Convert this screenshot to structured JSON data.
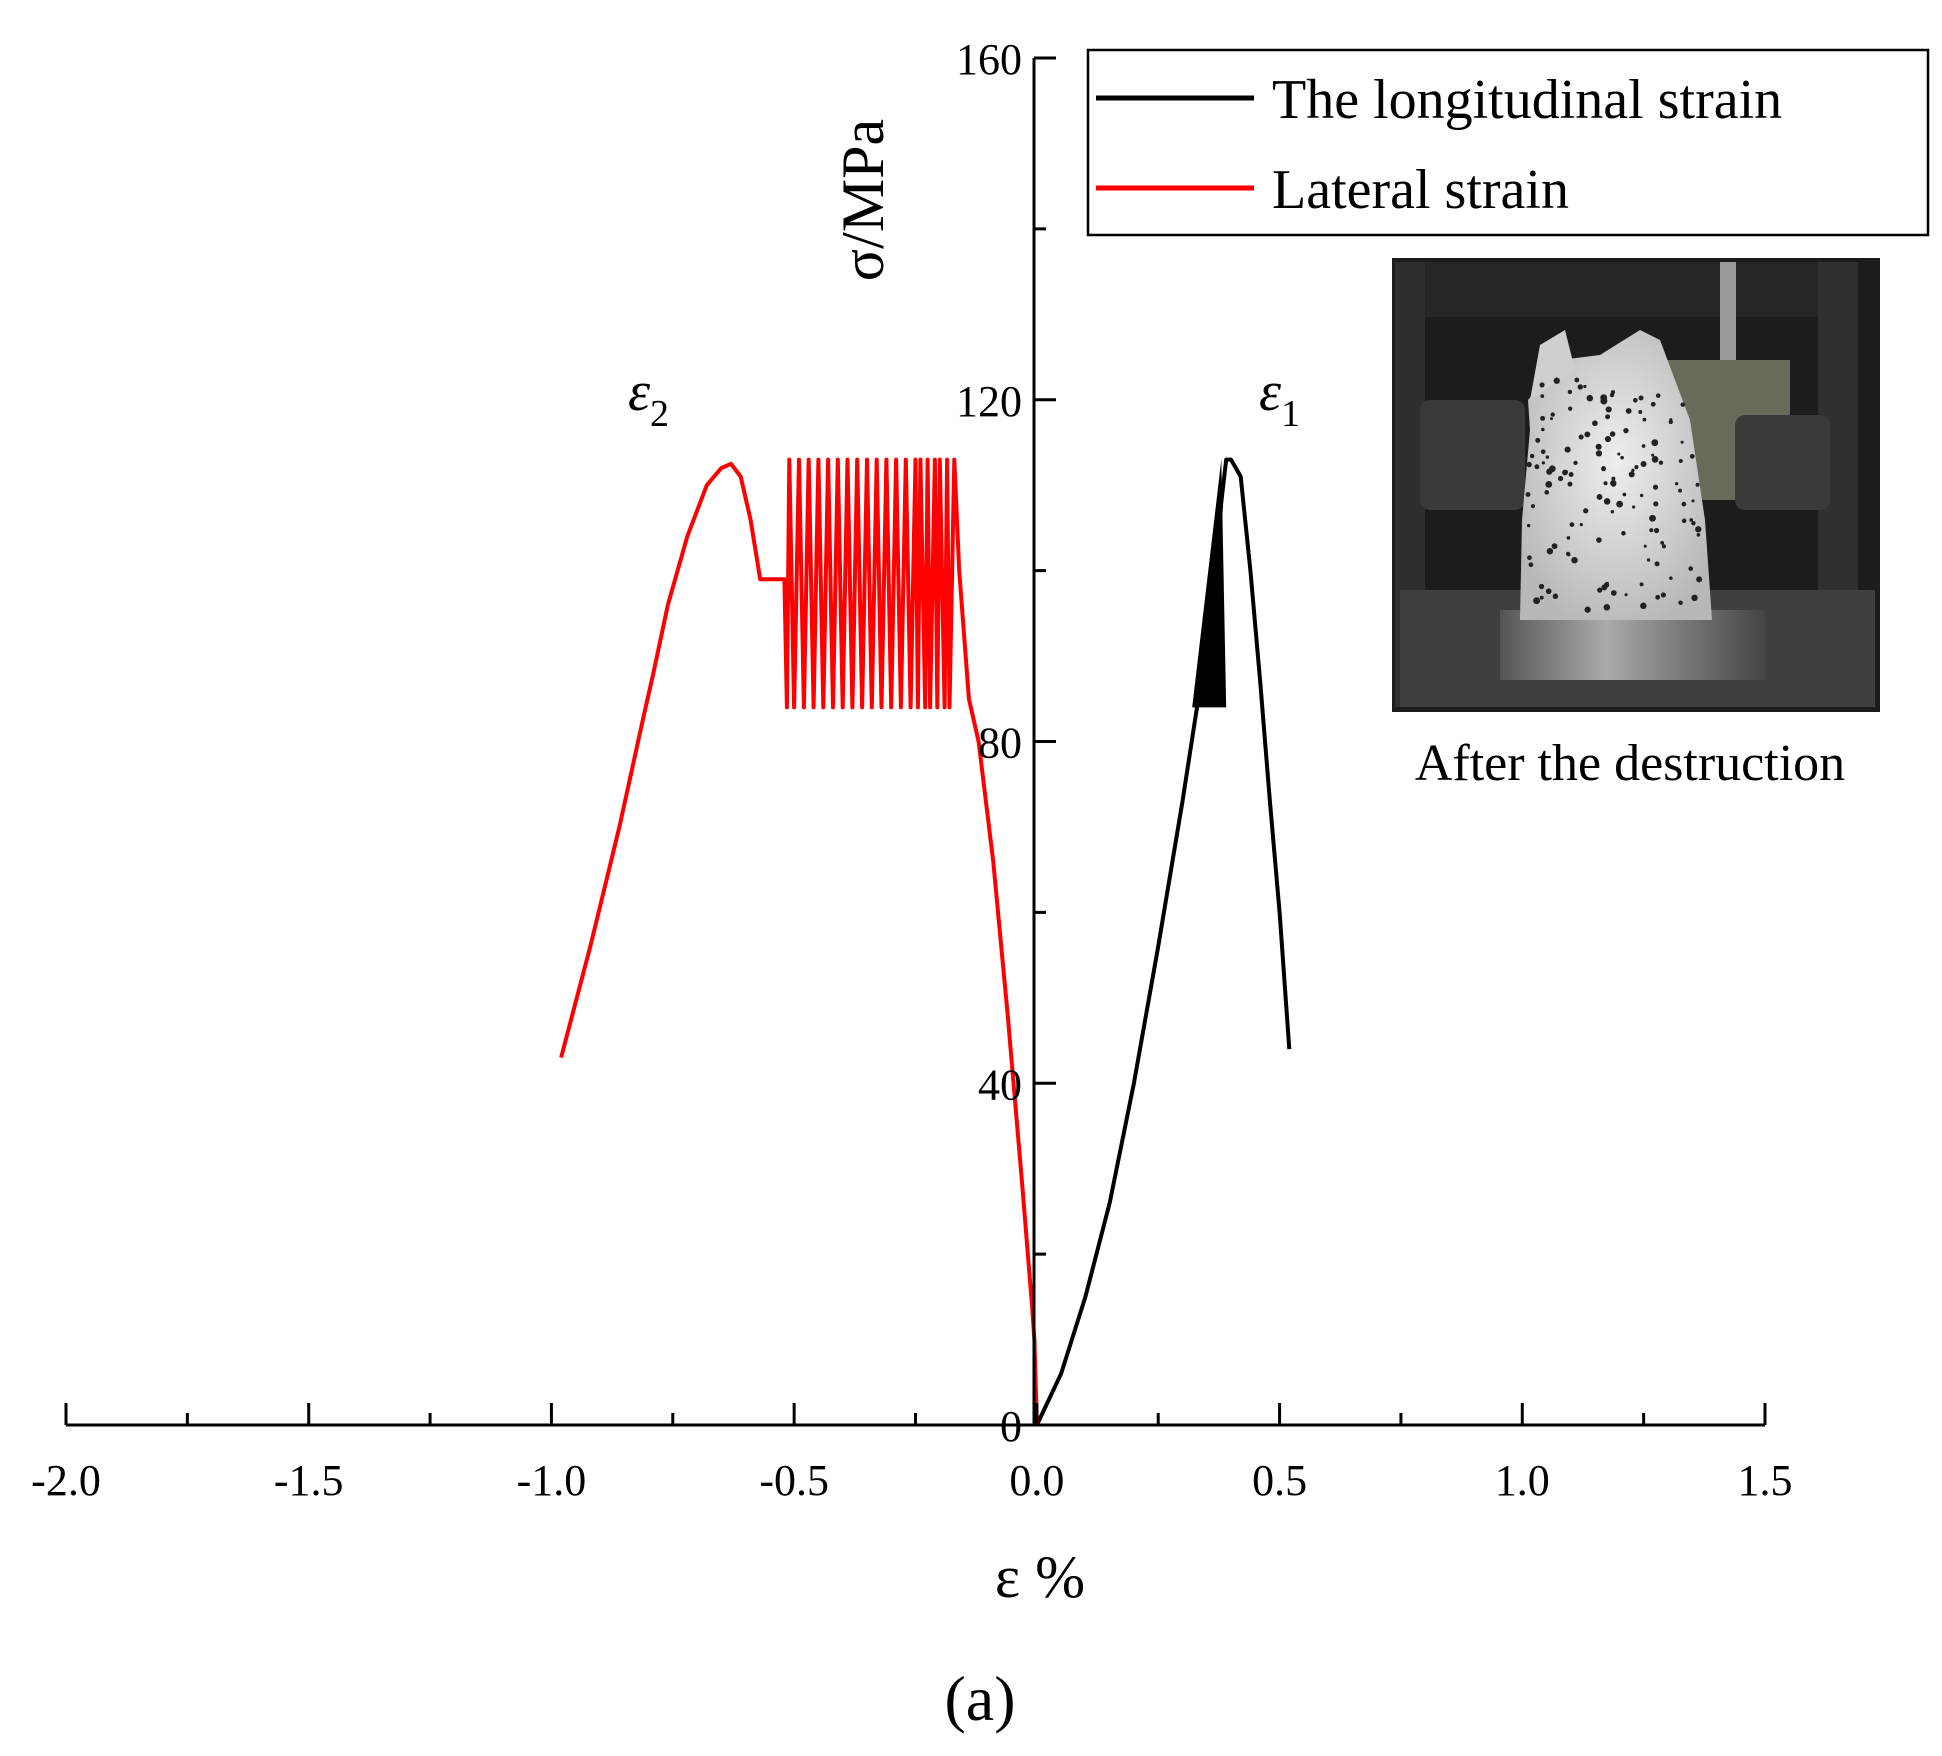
{
  "chart_data": {
    "type": "line",
    "title": "",
    "xlabel": "ε %",
    "ylabel": "σ/MPa",
    "xlim": [
      -2.0,
      1.5
    ],
    "ylim": [
      0,
      160
    ],
    "x_ticks": [
      -2.0,
      -1.5,
      -1.0,
      -0.5,
      0.0,
      0.5,
      1.0,
      1.5
    ],
    "x_tick_labels": [
      "-2.0",
      "-1.5",
      "-1.0",
      "-0.5",
      "0.0",
      "0.5",
      "1.0",
      "1.5"
    ],
    "y_ticks": [
      0,
      40,
      80,
      120,
      160
    ],
    "y_tick_labels": [
      "0",
      "40",
      "80",
      "120",
      "160"
    ],
    "grid": false,
    "legend_position": "top-right",
    "series": [
      {
        "name": "The longitudinal strain",
        "color": "#000000",
        "x": [
          0.0,
          0.05,
          0.1,
          0.15,
          0.2,
          0.25,
          0.3,
          0.33,
          0.35,
          0.37,
          0.38,
          0.39,
          0.4,
          0.41,
          0.42,
          0.44,
          0.46,
          0.48,
          0.5,
          0.52
        ],
        "y": [
          0,
          6,
          15,
          26,
          40,
          56,
          73,
          84,
          93,
          100,
          108,
          113,
          113,
          112,
          111,
          100,
          87,
          73,
          60,
          44
        ]
      },
      {
        "name": "Lateral strain",
        "color": "#ff0000",
        "x": [
          0.0,
          -0.005,
          -0.01,
          -0.03,
          -0.06,
          -0.09,
          -0.12,
          -0.14,
          -0.16,
          -0.17,
          -0.18,
          -0.185,
          -0.19,
          -0.2,
          -0.205,
          -0.21,
          -0.22,
          -0.225,
          -0.23,
          -0.24,
          -0.245,
          -0.25,
          -0.26,
          -0.27,
          -0.28,
          -0.29,
          -0.3,
          -0.31,
          -0.32,
          -0.33,
          -0.34,
          -0.35,
          -0.36,
          -0.37,
          -0.38,
          -0.39,
          -0.4,
          -0.41,
          -0.42,
          -0.43,
          -0.44,
          -0.45,
          -0.46,
          -0.47,
          -0.48,
          -0.49,
          -0.5,
          -0.51,
          -0.515,
          -0.52,
          -0.55,
          -0.57,
          -0.59,
          -0.61,
          -0.63,
          -0.65,
          -0.68,
          -0.72,
          -0.76,
          -0.79,
          -0.81,
          -0.86,
          -0.92,
          -0.98
        ],
        "y": [
          0,
          10,
          14,
          28,
          48,
          66,
          80,
          85,
          100,
          113,
          84,
          113,
          84,
          113,
          84,
          113,
          84,
          113,
          84,
          113,
          84,
          113,
          84,
          113,
          84,
          113,
          84,
          113,
          84,
          113,
          84,
          113,
          84,
          113,
          84,
          113,
          84,
          113,
          84,
          113,
          84,
          113,
          84,
          113,
          84,
          113,
          84,
          113,
          84,
          99,
          99,
          99,
          106,
          111,
          112.5,
          112,
          110,
          104,
          96,
          88,
          83,
          70,
          56,
          43
        ]
      }
    ],
    "annotations": [
      {
        "text": "ε",
        "subscript": "1",
        "x": 0.5,
        "y": 120
      },
      {
        "text": "ε",
        "subscript": "2",
        "x": -0.8,
        "y": 120
      }
    ]
  },
  "inset": {
    "caption": "After the destruction",
    "image_subject": "photo-of-fractured-specimen"
  },
  "panel_label": "(a)"
}
